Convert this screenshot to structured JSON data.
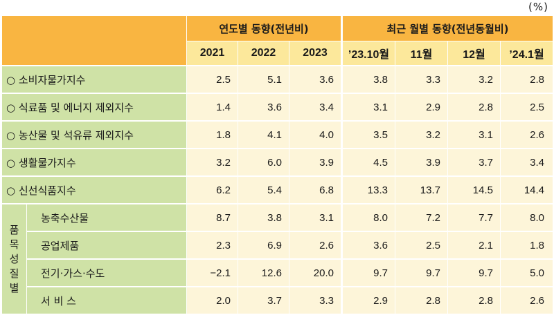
{
  "unit": "(%)",
  "header": {
    "group_yearly": "연도별 동향(전년비)",
    "group_monthly": "최근 월별 동향(전년동월비)",
    "columns": [
      "2021",
      "2022",
      "2023",
      "’23.10월",
      "11월",
      "12월",
      "’24.1월"
    ]
  },
  "rows": [
    {
      "label": "○ 소비자물가지수",
      "values": [
        "2.5",
        "5.1",
        "3.6",
        "3.8",
        "3.3",
        "3.2",
        "2.8"
      ]
    },
    {
      "label": "○ 식료품 및 에너지 제외지수",
      "values": [
        "1.4",
        "3.6",
        "3.4",
        "3.1",
        "2.9",
        "2.8",
        "2.5"
      ]
    },
    {
      "label": "○ 농산물 및 석유류 제외지수",
      "values": [
        "1.8",
        "4.1",
        "4.0",
        "3.5",
        "3.2",
        "3.1",
        "2.6"
      ]
    },
    {
      "label": "○ 생활물가지수",
      "values": [
        "3.2",
        "6.0",
        "3.9",
        "4.5",
        "3.9",
        "3.7",
        "3.4"
      ]
    },
    {
      "label": "○ 신선식품지수",
      "values": [
        "6.2",
        "5.4",
        "6.8",
        "13.3",
        "13.7",
        "14.5",
        "14.4"
      ]
    }
  ],
  "item_group": {
    "label": [
      "품",
      "목",
      "성",
      "질",
      "별"
    ],
    "rows": [
      {
        "label": "농축수산물",
        "values": [
          "8.7",
          "3.8",
          "3.1",
          "8.0",
          "7.2",
          "7.7",
          "8.0"
        ]
      },
      {
        "label": "공업제품",
        "values": [
          "2.3",
          "6.9",
          "2.6",
          "3.6",
          "2.5",
          "2.1",
          "1.8"
        ]
      },
      {
        "label": "전기·가스·수도",
        "values": [
          "−2.1",
          "12.6",
          "20.0",
          "9.7",
          "9.7",
          "9.7",
          "5.0"
        ]
      },
      {
        "label": "서 비 스",
        "values": [
          "2.0",
          "3.7",
          "3.3",
          "2.9",
          "2.8",
          "2.8",
          "2.6"
        ]
      }
    ]
  }
}
